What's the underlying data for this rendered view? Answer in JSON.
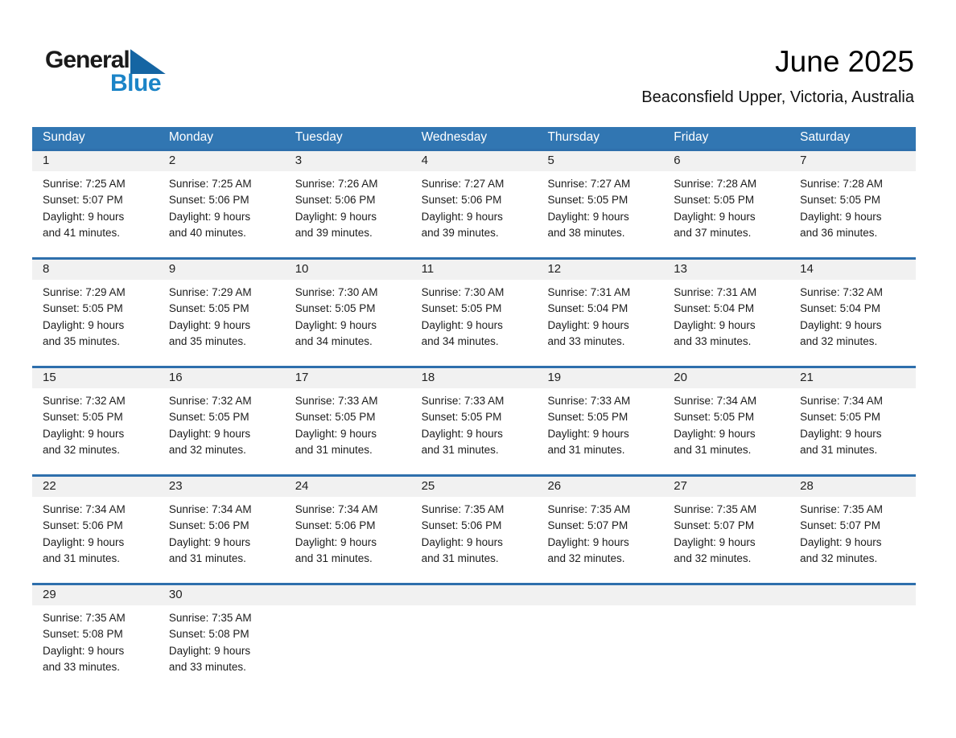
{
  "logo": {
    "part1": "General",
    "part2": "Blue"
  },
  "header": {
    "title": "June 2025",
    "subtitle": "Beaconsfield Upper, Victoria, Australia"
  },
  "weekdays": [
    "Sunday",
    "Monday",
    "Tuesday",
    "Wednesday",
    "Thursday",
    "Friday",
    "Saturday"
  ],
  "colors": {
    "header_bg": "#3176b2",
    "separator_blue": "#2e6fac",
    "band_bg": "#f1f1f1",
    "logo_blue": "#1b84c7",
    "triangle_blue": "#1565a3"
  },
  "weeks": [
    [
      {
        "n": "1",
        "sunrise": "Sunrise: 7:25 AM",
        "sunset": "Sunset: 5:07 PM",
        "daylight1": "Daylight: 9 hours",
        "daylight2": "and 41 minutes."
      },
      {
        "n": "2",
        "sunrise": "Sunrise: 7:25 AM",
        "sunset": "Sunset: 5:06 PM",
        "daylight1": "Daylight: 9 hours",
        "daylight2": "and 40 minutes."
      },
      {
        "n": "3",
        "sunrise": "Sunrise: 7:26 AM",
        "sunset": "Sunset: 5:06 PM",
        "daylight1": "Daylight: 9 hours",
        "daylight2": "and 39 minutes."
      },
      {
        "n": "4",
        "sunrise": "Sunrise: 7:27 AM",
        "sunset": "Sunset: 5:06 PM",
        "daylight1": "Daylight: 9 hours",
        "daylight2": "and 39 minutes."
      },
      {
        "n": "5",
        "sunrise": "Sunrise: 7:27 AM",
        "sunset": "Sunset: 5:05 PM",
        "daylight1": "Daylight: 9 hours",
        "daylight2": "and 38 minutes."
      },
      {
        "n": "6",
        "sunrise": "Sunrise: 7:28 AM",
        "sunset": "Sunset: 5:05 PM",
        "daylight1": "Daylight: 9 hours",
        "daylight2": "and 37 minutes."
      },
      {
        "n": "7",
        "sunrise": "Sunrise: 7:28 AM",
        "sunset": "Sunset: 5:05 PM",
        "daylight1": "Daylight: 9 hours",
        "daylight2": "and 36 minutes."
      }
    ],
    [
      {
        "n": "8",
        "sunrise": "Sunrise: 7:29 AM",
        "sunset": "Sunset: 5:05 PM",
        "daylight1": "Daylight: 9 hours",
        "daylight2": "and 35 minutes."
      },
      {
        "n": "9",
        "sunrise": "Sunrise: 7:29 AM",
        "sunset": "Sunset: 5:05 PM",
        "daylight1": "Daylight: 9 hours",
        "daylight2": "and 35 minutes."
      },
      {
        "n": "10",
        "sunrise": "Sunrise: 7:30 AM",
        "sunset": "Sunset: 5:05 PM",
        "daylight1": "Daylight: 9 hours",
        "daylight2": "and 34 minutes."
      },
      {
        "n": "11",
        "sunrise": "Sunrise: 7:30 AM",
        "sunset": "Sunset: 5:05 PM",
        "daylight1": "Daylight: 9 hours",
        "daylight2": "and 34 minutes."
      },
      {
        "n": "12",
        "sunrise": "Sunrise: 7:31 AM",
        "sunset": "Sunset: 5:04 PM",
        "daylight1": "Daylight: 9 hours",
        "daylight2": "and 33 minutes."
      },
      {
        "n": "13",
        "sunrise": "Sunrise: 7:31 AM",
        "sunset": "Sunset: 5:04 PM",
        "daylight1": "Daylight: 9 hours",
        "daylight2": "and 33 minutes."
      },
      {
        "n": "14",
        "sunrise": "Sunrise: 7:32 AM",
        "sunset": "Sunset: 5:04 PM",
        "daylight1": "Daylight: 9 hours",
        "daylight2": "and 32 minutes."
      }
    ],
    [
      {
        "n": "15",
        "sunrise": "Sunrise: 7:32 AM",
        "sunset": "Sunset: 5:05 PM",
        "daylight1": "Daylight: 9 hours",
        "daylight2": "and 32 minutes."
      },
      {
        "n": "16",
        "sunrise": "Sunrise: 7:32 AM",
        "sunset": "Sunset: 5:05 PM",
        "daylight1": "Daylight: 9 hours",
        "daylight2": "and 32 minutes."
      },
      {
        "n": "17",
        "sunrise": "Sunrise: 7:33 AM",
        "sunset": "Sunset: 5:05 PM",
        "daylight1": "Daylight: 9 hours",
        "daylight2": "and 31 minutes."
      },
      {
        "n": "18",
        "sunrise": "Sunrise: 7:33 AM",
        "sunset": "Sunset: 5:05 PM",
        "daylight1": "Daylight: 9 hours",
        "daylight2": "and 31 minutes."
      },
      {
        "n": "19",
        "sunrise": "Sunrise: 7:33 AM",
        "sunset": "Sunset: 5:05 PM",
        "daylight1": "Daylight: 9 hours",
        "daylight2": "and 31 minutes."
      },
      {
        "n": "20",
        "sunrise": "Sunrise: 7:34 AM",
        "sunset": "Sunset: 5:05 PM",
        "daylight1": "Daylight: 9 hours",
        "daylight2": "and 31 minutes."
      },
      {
        "n": "21",
        "sunrise": "Sunrise: 7:34 AM",
        "sunset": "Sunset: 5:05 PM",
        "daylight1": "Daylight: 9 hours",
        "daylight2": "and 31 minutes."
      }
    ],
    [
      {
        "n": "22",
        "sunrise": "Sunrise: 7:34 AM",
        "sunset": "Sunset: 5:06 PM",
        "daylight1": "Daylight: 9 hours",
        "daylight2": "and 31 minutes."
      },
      {
        "n": "23",
        "sunrise": "Sunrise: 7:34 AM",
        "sunset": "Sunset: 5:06 PM",
        "daylight1": "Daylight: 9 hours",
        "daylight2": "and 31 minutes."
      },
      {
        "n": "24",
        "sunrise": "Sunrise: 7:34 AM",
        "sunset": "Sunset: 5:06 PM",
        "daylight1": "Daylight: 9 hours",
        "daylight2": "and 31 minutes."
      },
      {
        "n": "25",
        "sunrise": "Sunrise: 7:35 AM",
        "sunset": "Sunset: 5:06 PM",
        "daylight1": "Daylight: 9 hours",
        "daylight2": "and 31 minutes."
      },
      {
        "n": "26",
        "sunrise": "Sunrise: 7:35 AM",
        "sunset": "Sunset: 5:07 PM",
        "daylight1": "Daylight: 9 hours",
        "daylight2": "and 32 minutes."
      },
      {
        "n": "27",
        "sunrise": "Sunrise: 7:35 AM",
        "sunset": "Sunset: 5:07 PM",
        "daylight1": "Daylight: 9 hours",
        "daylight2": "and 32 minutes."
      },
      {
        "n": "28",
        "sunrise": "Sunrise: 7:35 AM",
        "sunset": "Sunset: 5:07 PM",
        "daylight1": "Daylight: 9 hours",
        "daylight2": "and 32 minutes."
      }
    ],
    [
      {
        "n": "29",
        "sunrise": "Sunrise: 7:35 AM",
        "sunset": "Sunset: 5:08 PM",
        "daylight1": "Daylight: 9 hours",
        "daylight2": "and 33 minutes."
      },
      {
        "n": "30",
        "sunrise": "Sunrise: 7:35 AM",
        "sunset": "Sunset: 5:08 PM",
        "daylight1": "Daylight: 9 hours",
        "daylight2": "and 33 minutes."
      },
      null,
      null,
      null,
      null,
      null
    ]
  ]
}
